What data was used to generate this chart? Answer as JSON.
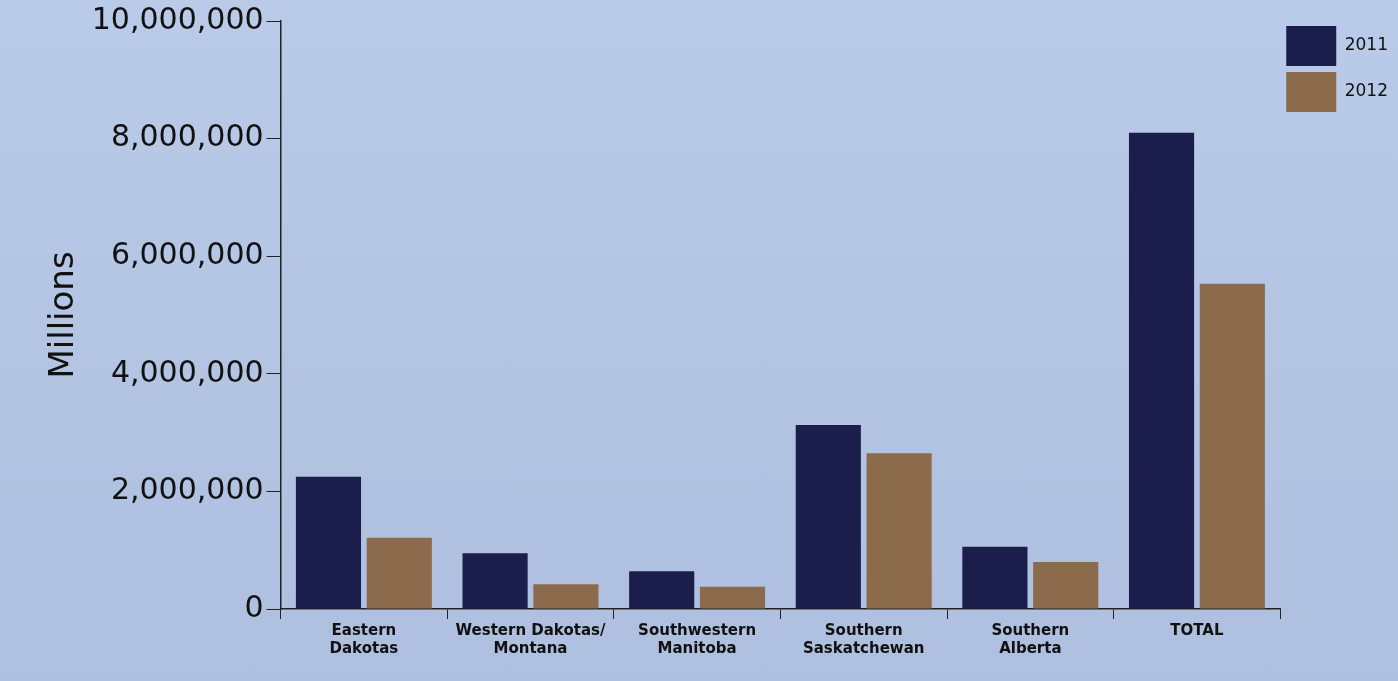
{
  "chart_data": {
    "type": "bar",
    "ylabel": "Millions",
    "categories": [
      "Eastern Dakotas",
      "Western Dakotas/ Montana",
      "Southwestern Manitoba",
      "Southern Saskatchewan",
      "Southern Alberta",
      "TOTAL"
    ],
    "series": [
      {
        "name": "2011",
        "color": "#1b1d4b",
        "values": [
          2250000,
          950000,
          640000,
          3130000,
          1060000,
          8100000
        ]
      },
      {
        "name": "2012",
        "color": "#8c6a4c",
        "values": [
          1210000,
          420000,
          380000,
          2650000,
          800000,
          5530000
        ]
      }
    ],
    "ylim": [
      0,
      10000000
    ],
    "yticks": [
      {
        "value": 0,
        "label": "0"
      },
      {
        "value": 2000000,
        "label": "2,000,000"
      },
      {
        "value": 4000000,
        "label": "4,000,000"
      },
      {
        "value": 6000000,
        "label": "6,000,000"
      },
      {
        "value": 8000000,
        "label": "8,000,000"
      },
      {
        "value": 10000000,
        "label": "10,000,000"
      }
    ],
    "grid": false,
    "legend": "top right"
  }
}
